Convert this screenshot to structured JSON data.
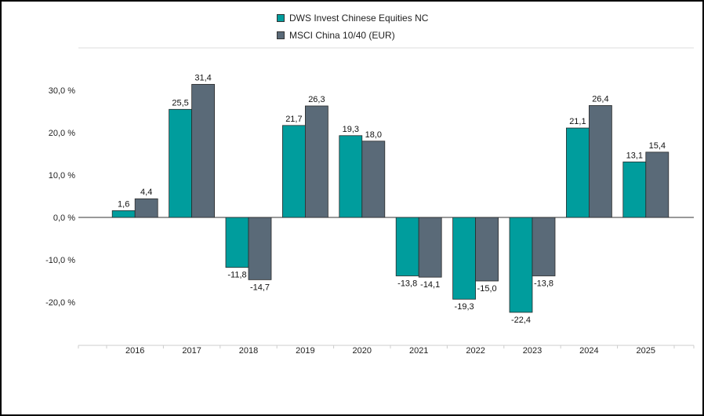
{
  "colors": {
    "series1": "#009D9D",
    "series2": "#5A6A78",
    "bar_stroke": "#2b2b2b",
    "grid": "#dddddd",
    "zero_line": "#333333"
  },
  "chart_data": {
    "type": "bar",
    "categories": [
      "2016",
      "2017",
      "2018",
      "2019",
      "2020",
      "2021",
      "2022",
      "2023",
      "2024",
      "2025"
    ],
    "series": [
      {
        "name": "DWS Invest Chinese Equities NC",
        "values": [
          1.6,
          25.5,
          -11.8,
          21.7,
          19.3,
          -13.8,
          -19.3,
          -22.4,
          21.1,
          13.1
        ],
        "labels": [
          "1,6",
          "25,5",
          "-11,8",
          "21,7",
          "19,3",
          "-13,8",
          "-19,3",
          "-22,4",
          "21,1",
          "13,1"
        ]
      },
      {
        "name": "MSCI China 10/40 (EUR)",
        "values": [
          4.4,
          31.4,
          -14.7,
          26.3,
          18.0,
          -14.1,
          -15.0,
          -13.8,
          26.4,
          15.4
        ],
        "labels": [
          "4,4",
          "31,4",
          "-14,7",
          "26,3",
          "18,0",
          "-14,1",
          "-15,0",
          "-13,8",
          "26,4",
          "15,4"
        ]
      }
    ],
    "yticks": [
      30,
      20,
      10,
      0,
      -10,
      -20
    ],
    "ytick_labels": [
      "30,0 %",
      "20,0 %",
      "10,0 %",
      "0,0 %",
      "-10,0 %",
      "-20,0 %"
    ],
    "ylim": [
      -30,
      40
    ],
    "legend_position": "top-center",
    "grid": false
  }
}
